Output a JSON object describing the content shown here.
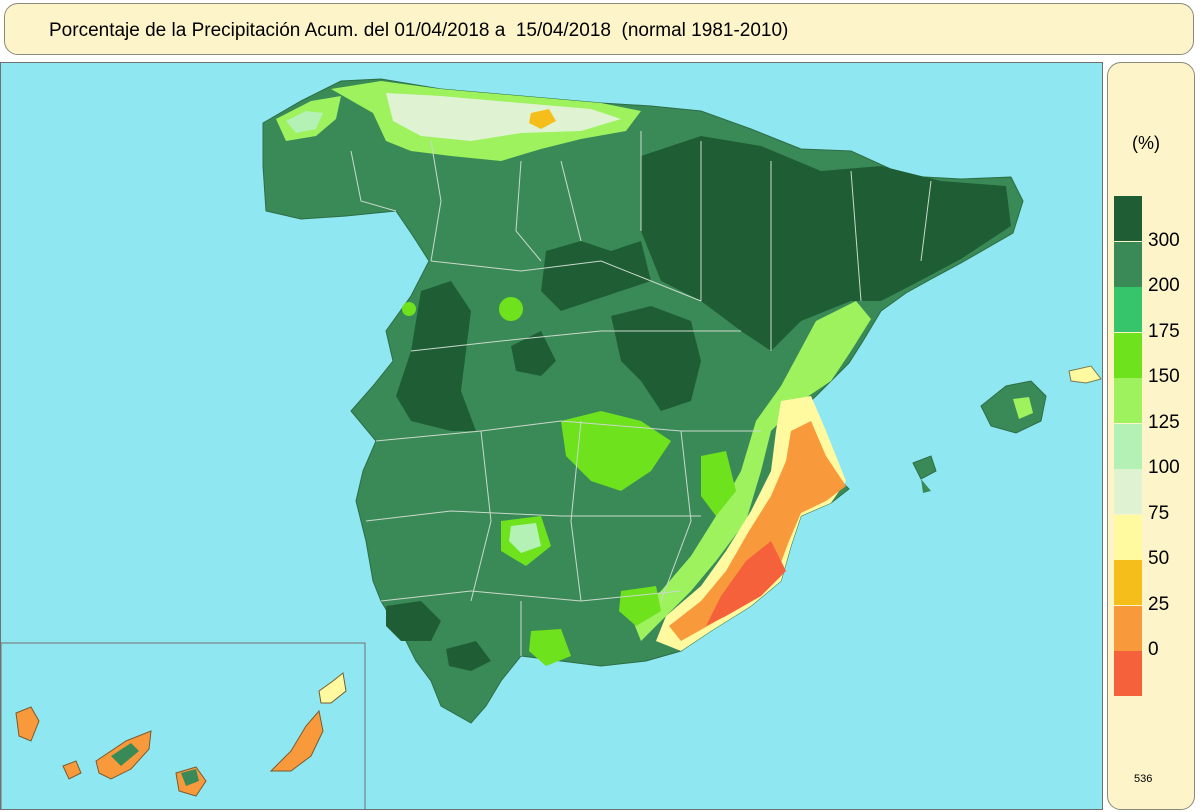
{
  "title": "Porcentaje de la Precipitación Acum. del 01/04/2018 a  15/04/2018  (normal 1981-2010)",
  "legend": {
    "unit": "(%)",
    "classes": [
      {
        "color": "#1f5e35",
        "label": "300"
      },
      {
        "color": "#3a8a58",
        "label": "200"
      },
      {
        "color": "#36c56a",
        "label": "175"
      },
      {
        "color": "#6ee21c",
        "label": "150"
      },
      {
        "color": "#9df25e",
        "label": "125"
      },
      {
        "color": "#b3f1b4",
        "label": "100"
      },
      {
        "color": "#dff3d3",
        "label": "75"
      },
      {
        "color": "#fffaa0",
        "label": "50"
      },
      {
        "color": "#f6be1b",
        "label": "25"
      },
      {
        "color": "#f89a3c",
        "label": "0"
      },
      {
        "color": "#f5613b",
        "label": ""
      }
    ]
  },
  "map_id": "536",
  "colors": {
    "sea": "#8fe8f1",
    "panel": "#fdf5c9",
    "border_lines": "#c9d9cc"
  }
}
